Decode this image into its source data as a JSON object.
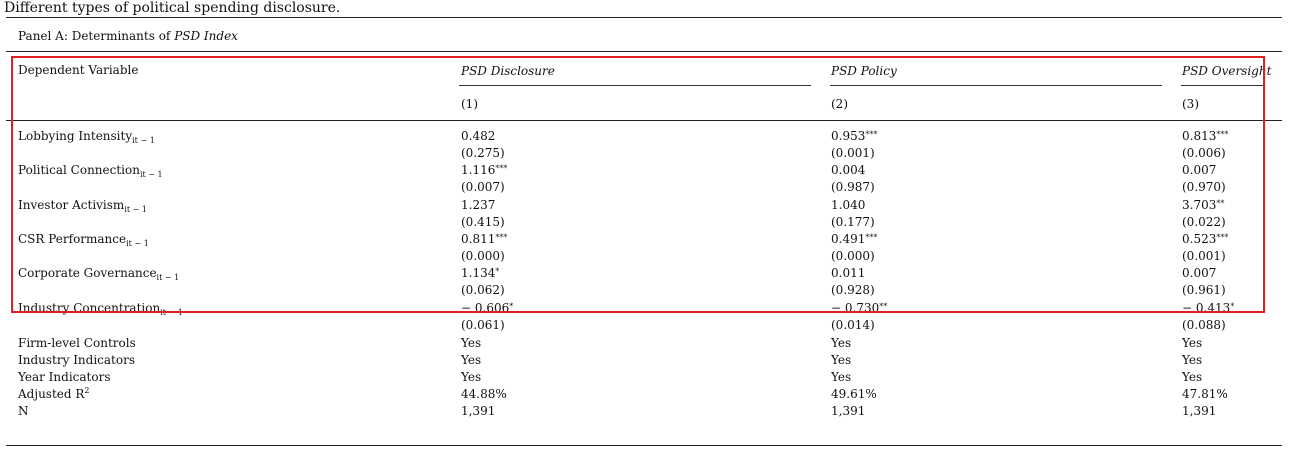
{
  "title": "Different types of political spending disclosure.",
  "panel": {
    "label_prefix": "Panel A: Determinants of ",
    "label_italic": "PSD Index"
  },
  "header": {
    "dep_var_label": "Dependent Variable",
    "columns": [
      {
        "name": "PSD Disclosure",
        "number": "(1)"
      },
      {
        "name": "PSD Policy",
        "number": "(2)"
      },
      {
        "name": "PSD Oversight",
        "number": "(3)"
      }
    ]
  },
  "subscript": "it − 1",
  "rows": [
    {
      "label": "Lobbying Intensity",
      "coef": [
        {
          "v": "0.482",
          "s": ""
        },
        {
          "v": "0.953",
          "s": "***"
        },
        {
          "v": "0.813",
          "s": "***"
        }
      ],
      "p": [
        "(0.275)",
        "(0.001)",
        "(0.006)"
      ]
    },
    {
      "label": "Political Connection",
      "coef": [
        {
          "v": "1.116",
          "s": "***"
        },
        {
          "v": "0.004",
          "s": ""
        },
        {
          "v": "0.007",
          "s": ""
        }
      ],
      "p": [
        "(0.007)",
        "(0.987)",
        "(0.970)"
      ]
    },
    {
      "label": "Investor Activism",
      "coef": [
        {
          "v": "1.237",
          "s": ""
        },
        {
          "v": "1.040",
          "s": ""
        },
        {
          "v": "3.703",
          "s": "**"
        }
      ],
      "p": [
        "(0.415)",
        "(0.177)",
        "(0.022)"
      ]
    },
    {
      "label": "CSR Performance",
      "coef": [
        {
          "v": "0.811",
          "s": "***"
        },
        {
          "v": "0.491",
          "s": "***"
        },
        {
          "v": "0.523",
          "s": "***"
        }
      ],
      "p": [
        "(0.000)",
        "(0.000)",
        "(0.001)"
      ]
    },
    {
      "label": "Corporate Governance",
      "coef": [
        {
          "v": "1.134",
          "s": "*"
        },
        {
          "v": "0.011",
          "s": ""
        },
        {
          "v": "0.007",
          "s": ""
        }
      ],
      "p": [
        "(0.062)",
        "(0.928)",
        "(0.961)"
      ]
    },
    {
      "label": "Industry Concentration",
      "coef": [
        {
          "v": "− 0.606",
          "s": "*"
        },
        {
          "v": "− 0.730",
          "s": "**"
        },
        {
          "v": "− 0.413",
          "s": "*"
        }
      ],
      "p": [
        "(0.061)",
        "(0.014)",
        "(0.088)"
      ]
    }
  ],
  "footer_rows": [
    {
      "label": "Firm-level Controls",
      "values": [
        "Yes",
        "Yes",
        "Yes"
      ]
    },
    {
      "label": "Industry Indicators",
      "values": [
        "Yes",
        "Yes",
        "Yes"
      ]
    },
    {
      "label": "Year Indicators",
      "values": [
        "Yes",
        "Yes",
        "Yes"
      ]
    },
    {
      "label": "Adjusted R",
      "label_sup": "2",
      "values": [
        "44.88%",
        "49.61%",
        "47.81%"
      ]
    },
    {
      "label": "N",
      "values": [
        "1,391",
        "1,391",
        "1,391"
      ]
    }
  ]
}
